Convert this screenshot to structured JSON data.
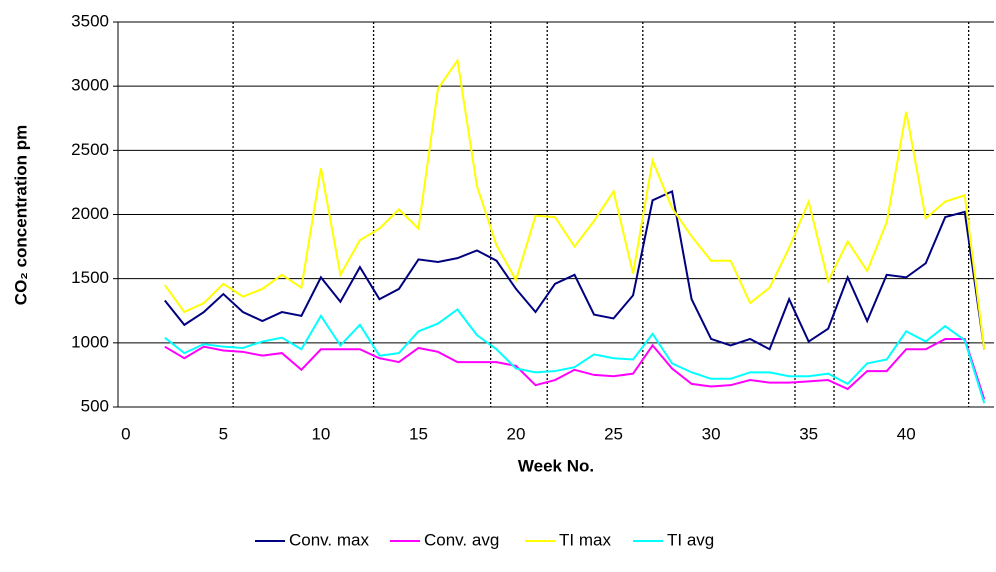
{
  "chart_data": {
    "type": "line",
    "x_label": "Week No.",
    "y_label": "CO₂ concentration pm",
    "x": [
      2,
      3,
      4,
      5,
      6,
      7,
      8,
      9,
      10,
      11,
      12,
      13,
      14,
      15,
      16,
      17,
      18,
      19,
      20,
      21,
      22,
      23,
      24,
      25,
      26,
      27,
      28,
      29,
      30,
      31,
      32,
      33,
      34,
      35,
      36,
      37,
      38,
      39,
      40,
      41,
      42,
      43,
      44
    ],
    "series": [
      {
        "name": "Conv. max",
        "color": "#000080",
        "values": [
          1330,
          1140,
          1240,
          1380,
          1240,
          1170,
          1240,
          1210,
          1510,
          1320,
          1590,
          1340,
          1420,
          1650,
          1630,
          1660,
          1720,
          1640,
          1420,
          1240,
          1460,
          1530,
          1220,
          1190,
          1370,
          2110,
          2180,
          1340,
          1030,
          980,
          1030,
          950,
          1340,
          1010,
          1110,
          1510,
          1170,
          1530,
          1510,
          1620,
          1980,
          2020,
          950
        ]
      },
      {
        "name": "Conv. avg",
        "color": "#ff00ff",
        "values": [
          970,
          880,
          970,
          940,
          930,
          900,
          920,
          790,
          950,
          950,
          950,
          880,
          850,
          960,
          930,
          850,
          850,
          850,
          820,
          670,
          710,
          790,
          750,
          740,
          760,
          980,
          800,
          680,
          660,
          670,
          710,
          690,
          690,
          700,
          710,
          640,
          780,
          780,
          950,
          950,
          1030,
          1030,
          560
        ]
      },
      {
        "name": "TI max",
        "color": "#ffff00",
        "values": [
          1450,
          1240,
          1310,
          1460,
          1360,
          1420,
          1530,
          1430,
          2360,
          1530,
          1800,
          1890,
          2040,
          1890,
          2980,
          3200,
          2220,
          1760,
          1490,
          1990,
          1980,
          1750,
          1950,
          2180,
          1540,
          2420,
          2050,
          1830,
          1640,
          1640,
          1310,
          1430,
          1740,
          2100,
          1480,
          1790,
          1560,
          1940,
          2800,
          1970,
          2100,
          2150,
          950
        ]
      },
      {
        "name": "TI avg",
        "color": "#00ffff",
        "values": [
          1040,
          920,
          990,
          970,
          960,
          1010,
          1040,
          950,
          1210,
          980,
          1140,
          900,
          920,
          1090,
          1150,
          1260,
          1060,
          950,
          800,
          770,
          780,
          810,
          910,
          880,
          870,
          1070,
          840,
          770,
          720,
          720,
          770,
          770,
          740,
          740,
          760,
          680,
          840,
          870,
          1090,
          1010,
          1130,
          1020,
          530
        ]
      }
    ],
    "vlines": [
      5.5,
      12.7,
      18.7,
      21.6,
      26.5,
      34.3,
      36.3,
      43.2
    ],
    "xlim": [
      -0.4,
      44.5
    ],
    "xticks": [
      0,
      5,
      10,
      15,
      20,
      25,
      30,
      35,
      40
    ],
    "ylim": [
      500,
      3500
    ],
    "yticks": [
      500,
      1000,
      1500,
      2000,
      2500,
      3000,
      3500
    ],
    "grid": true,
    "legend": "bottom"
  }
}
